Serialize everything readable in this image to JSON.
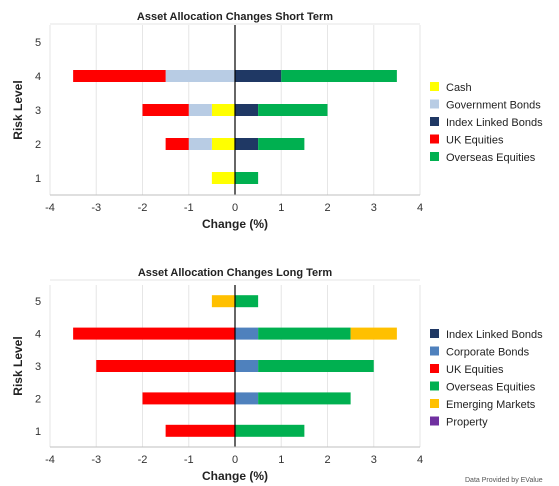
{
  "credit": "Data Provided by EValue",
  "chart_data": [
    {
      "type": "bar",
      "orientation": "horizontal",
      "stacked": "diverging",
      "title": "Asset Allocation Changes Short Term",
      "xlabel": "Change (%)",
      "ylabel": "Risk Level",
      "categories": [
        "1",
        "2",
        "3",
        "4",
        "5"
      ],
      "xlim": [
        -4,
        4
      ],
      "xticks": [
        "-4",
        "-3",
        "-2",
        "-1",
        "0",
        "1",
        "2",
        "3",
        "4"
      ],
      "grid": "vertical",
      "legend_position": "right",
      "series": [
        {
          "name": "Cash",
          "color": "#ffff00",
          "values": [
            -0.5,
            -0.5,
            -0.5,
            0,
            0
          ]
        },
        {
          "name": "Government Bonds",
          "color": "#b8cce4",
          "values": [
            0,
            -0.5,
            -0.5,
            -1.5,
            0
          ]
        },
        {
          "name": "Index Linked Bonds",
          "color": "#1f3864",
          "values": [
            0,
            0.5,
            0.5,
            1.0,
            0
          ]
        },
        {
          "name": "UK Equities",
          "color": "#ff0000",
          "values": [
            0,
            -0.5,
            -1.0,
            -2.0,
            0
          ]
        },
        {
          "name": "Overseas Equities",
          "color": "#00b050",
          "values": [
            0.5,
            1.0,
            1.5,
            2.5,
            0
          ]
        }
      ]
    },
    {
      "type": "bar",
      "orientation": "horizontal",
      "stacked": "diverging",
      "title": "Asset Allocation Changes Long Term",
      "xlabel": "Change (%)",
      "ylabel": "Risk Level",
      "categories": [
        "1",
        "2",
        "3",
        "4",
        "5"
      ],
      "xlim": [
        -4,
        4
      ],
      "xticks": [
        "-4",
        "-3",
        "-2",
        "-1",
        "0",
        "1",
        "2",
        "3",
        "4"
      ],
      "grid": "vertical",
      "legend_position": "right",
      "series": [
        {
          "name": "Index Linked Bonds",
          "color": "#1f3864",
          "values": [
            0,
            0,
            0,
            0,
            0
          ]
        },
        {
          "name": "Corporate Bonds",
          "color": "#4f81bd",
          "values": [
            0,
            0.5,
            0.5,
            0.5,
            0
          ]
        },
        {
          "name": "UK Equities",
          "color": "#ff0000",
          "values": [
            -1.5,
            -2.0,
            -3.0,
            -3.5,
            0
          ]
        },
        {
          "name": "Overseas Equities",
          "color": "#00b050",
          "values": [
            1.5,
            2.0,
            2.5,
            2.0,
            0.5
          ]
        },
        {
          "name": "Emerging Markets",
          "color": "#ffc000",
          "values": [
            0,
            0,
            0,
            1.0,
            -0.5
          ]
        },
        {
          "name": "Property",
          "color": "#7030a0",
          "values": [
            0,
            0,
            0,
            0,
            0
          ]
        }
      ]
    }
  ]
}
